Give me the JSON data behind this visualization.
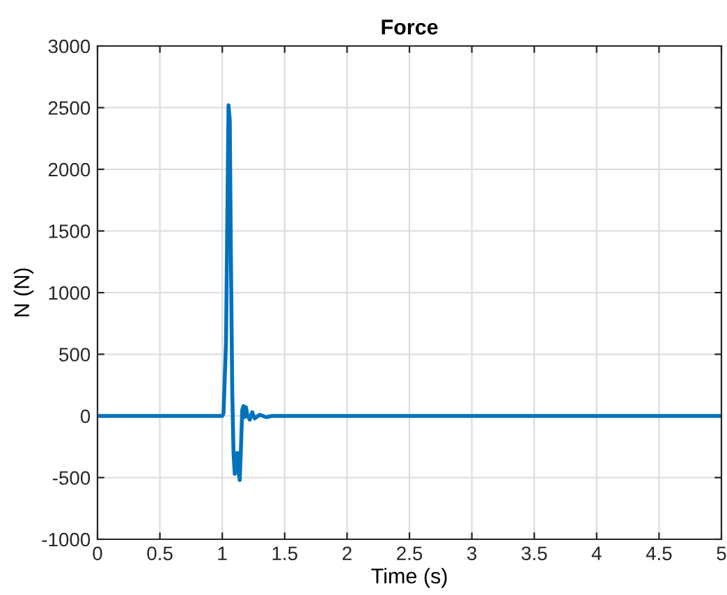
{
  "chart_data": {
    "type": "line",
    "title": "Force",
    "xlabel": "Time (s)",
    "ylabel": "N (N)",
    "x": [
      0,
      0.5,
      1.0,
      1.01,
      1.03,
      1.05,
      1.06,
      1.07,
      1.08,
      1.09,
      1.1,
      1.11,
      1.12,
      1.13,
      1.14,
      1.15,
      1.16,
      1.17,
      1.18,
      1.19,
      1.2,
      1.22,
      1.24,
      1.26,
      1.3,
      1.35,
      1.4,
      1.5,
      2,
      3,
      4,
      5
    ],
    "series": [
      {
        "color": "#0072bd",
        "values": [
          0,
          0,
          0,
          20,
          600,
          2520,
          2400,
          1200,
          200,
          -300,
          -470,
          -380,
          -300,
          -450,
          -520,
          -250,
          50,
          80,
          -10,
          70,
          10,
          -30,
          30,
          -20,
          10,
          -10,
          0,
          0,
          0,
          0,
          0,
          0
        ]
      }
    ],
    "xlim": [
      0,
      5
    ],
    "ylim": [
      -1000,
      3000
    ],
    "xticks": [
      0,
      0.5,
      1,
      1.5,
      2,
      2.5,
      3,
      3.5,
      4,
      4.5,
      5
    ],
    "yticks": [
      -1000,
      -500,
      0,
      500,
      1000,
      1500,
      2000,
      2500,
      3000
    ],
    "grid": true
  }
}
